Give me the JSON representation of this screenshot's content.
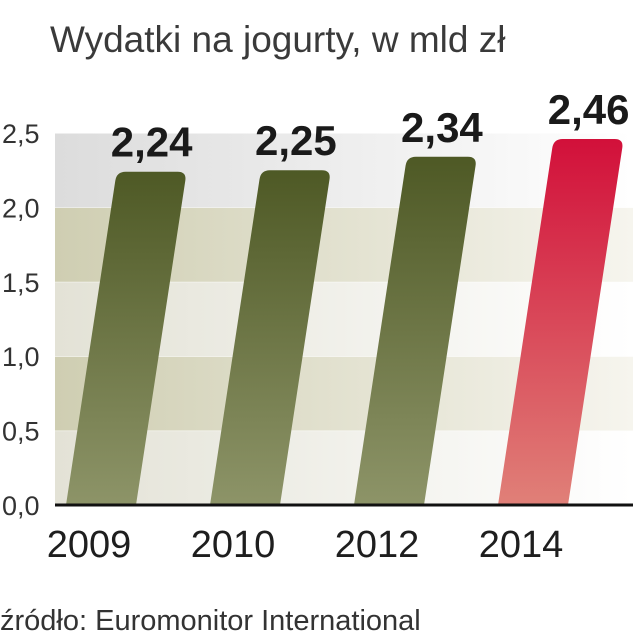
{
  "chart_data": {
    "type": "bar",
    "title": "Wydatki na jogurty, w mld zł",
    "categories": [
      "2009",
      "2010",
      "2012",
      "2014"
    ],
    "values": [
      2.24,
      2.25,
      2.34,
      2.46
    ],
    "data_labels": [
      "2,24",
      "2,25",
      "2,34",
      "2,46"
    ],
    "yticks": [
      0,
      0.5,
      1,
      1.5,
      2,
      2.5
    ],
    "ytick_labels": [
      "0,0",
      "0,5",
      "1,0",
      "1,5",
      "2,0",
      "2,5"
    ],
    "ylim": [
      0,
      2.5
    ],
    "grid": true,
    "highlight_index": 3,
    "colors": {
      "bar_top": "#4e5925",
      "bar_bottom": "#8d9468",
      "highlight_top": "#d2103a",
      "highlight_bottom": "#e08078"
    },
    "source": "źródło: Euromonitor International"
  }
}
